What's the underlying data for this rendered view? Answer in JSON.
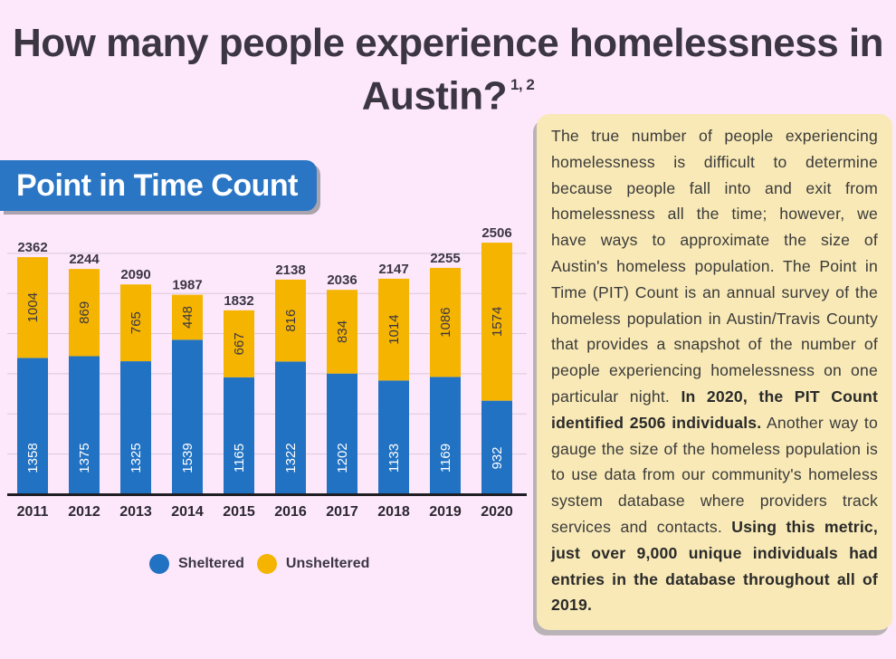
{
  "title": {
    "line1": "How many people experience homelessness in",
    "line2": "Austin?",
    "footnote": "1, 2"
  },
  "section_banner": "Point in Time Count",
  "legend": [
    {
      "label": "Sheltered",
      "color": "#2272c3"
    },
    {
      "label": "Unsheltered",
      "color": "#f4b400"
    }
  ],
  "panel": {
    "text1": "The true number of people experiencing homelessness is difficult to determine because people fall into and exit from homelessness all the time; however, we have ways to approximate the size of Austin's homeless population. The Point in Time (PIT) Count is an annual survey of the homeless population in Austin/Travis County that provides a snapshot of the number of people experiencing homelessness on one particular night.",
    "bold1": "In 2020, the PIT Count identified 2506 individuals.",
    "text2": "Another way to gauge the size of the homeless population is to use data from our community's homeless system database where providers track services and contacts.",
    "bold2": "Using this metric, just over 9,000 unique individuals had entries in the database throughout all of 2019."
  },
  "chart_data": {
    "type": "bar",
    "stacked": true,
    "title": "Point in Time Count",
    "categories": [
      "2011",
      "2012",
      "2013",
      "2014",
      "2015",
      "2016",
      "2017",
      "2018",
      "2019",
      "2020"
    ],
    "series": [
      {
        "name": "Sheltered",
        "color": "#2272c3",
        "values": [
          1358,
          1375,
          1325,
          1539,
          1165,
          1322,
          1202,
          1133,
          1169,
          932
        ]
      },
      {
        "name": "Unsheltered",
        "color": "#f4b400",
        "values": [
          1004,
          869,
          765,
          448,
          667,
          816,
          834,
          1014,
          1086,
          1574
        ]
      }
    ],
    "totals": [
      2362,
      2244,
      2090,
      1987,
      1832,
      2138,
      2036,
      2147,
      2255,
      2506
    ],
    "ylim": [
      0,
      3000
    ],
    "grid": true,
    "legend": "bottom"
  }
}
